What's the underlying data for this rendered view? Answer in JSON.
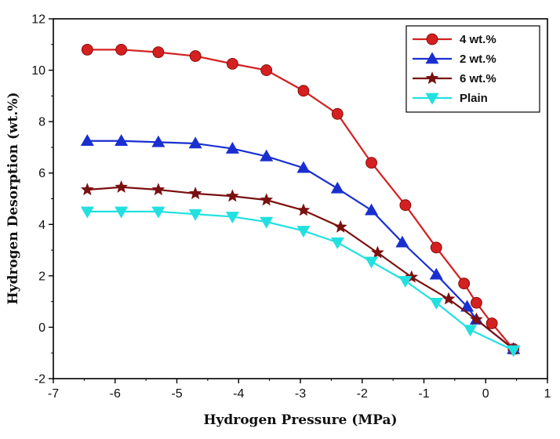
{
  "chart_data": {
    "type": "line",
    "title": "",
    "xlabel": "Hydrogen Pressure (MPa)",
    "ylabel": "Hydrogen Desorption (wt.%)",
    "xlim": [
      -7,
      1
    ],
    "ylim": [
      -2,
      12
    ],
    "xticks": [
      -7,
      -6,
      -5,
      -4,
      -3,
      -2,
      -1,
      0,
      1
    ],
    "yticks": [
      -2,
      0,
      2,
      4,
      6,
      8,
      10,
      12
    ],
    "legend_position": "top-right",
    "series": [
      {
        "name": "4 wt.%",
        "color": "#d42020",
        "marker": "circle",
        "x": [
          -6.45,
          -5.9,
          -5.3,
          -4.7,
          -4.1,
          -3.55,
          -2.95,
          -2.4,
          -1.85,
          -1.3,
          -0.8,
          -0.35,
          -0.15,
          0.1,
          0.45
        ],
        "y": [
          10.8,
          10.8,
          10.7,
          10.55,
          10.25,
          10.0,
          9.2,
          8.3,
          6.4,
          4.75,
          3.1,
          1.7,
          0.95,
          0.15,
          -0.85
        ]
      },
      {
        "name": "2 wt.%",
        "color": "#1a2fd0",
        "marker": "triangle-up",
        "x": [
          -6.45,
          -5.9,
          -5.3,
          -4.7,
          -4.1,
          -3.55,
          -2.95,
          -2.4,
          -1.85,
          -1.35,
          -0.8,
          -0.3,
          -0.15,
          0.45
        ],
        "y": [
          7.25,
          7.25,
          7.2,
          7.15,
          6.95,
          6.65,
          6.2,
          5.4,
          4.55,
          3.3,
          2.05,
          0.8,
          0.3,
          -0.85
        ]
      },
      {
        "name": "6 wt.%",
        "color": "#7a1010",
        "marker": "star",
        "x": [
          -6.45,
          -5.9,
          -5.3,
          -4.7,
          -4.1,
          -3.55,
          -2.95,
          -2.35,
          -1.75,
          -1.2,
          -0.6,
          -0.15,
          0.45
        ],
        "y": [
          5.35,
          5.45,
          5.35,
          5.2,
          5.1,
          4.95,
          4.55,
          3.9,
          2.9,
          1.95,
          1.1,
          0.3,
          -0.85
        ]
      },
      {
        "name": "Plain",
        "color": "#22e0e0",
        "marker": "triangle-down",
        "x": [
          -6.45,
          -5.9,
          -5.3,
          -4.7,
          -4.1,
          -3.55,
          -2.95,
          -2.4,
          -1.85,
          -1.3,
          -0.8,
          -0.25,
          0.45
        ],
        "y": [
          4.5,
          4.5,
          4.5,
          4.4,
          4.3,
          4.1,
          3.75,
          3.3,
          2.55,
          1.8,
          0.95,
          -0.1,
          -0.9
        ]
      }
    ]
  }
}
